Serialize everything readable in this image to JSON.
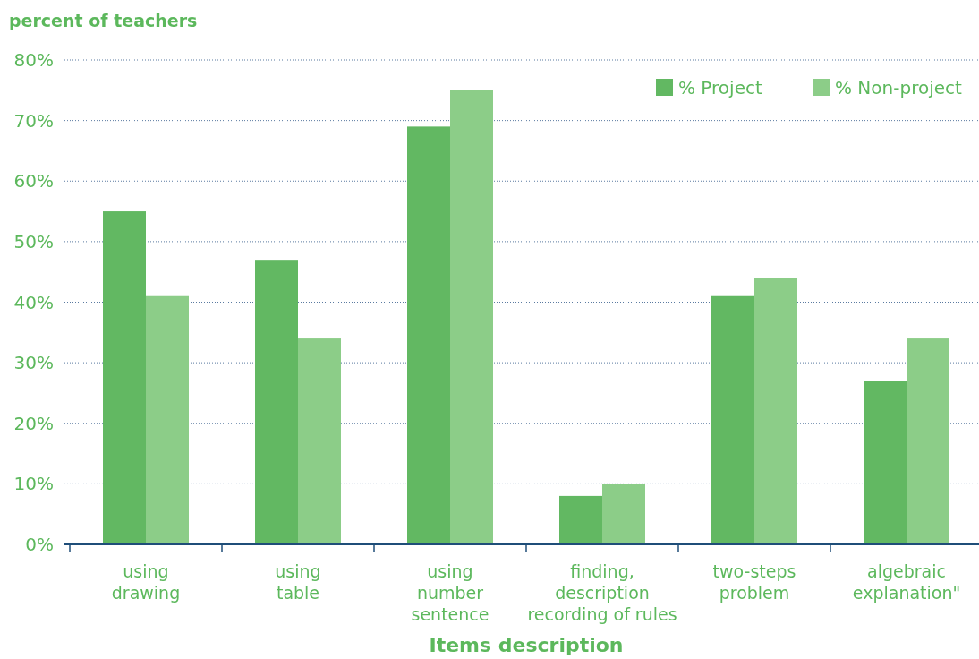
{
  "chart_data": {
    "type": "bar",
    "ylabel": "percent of teachers",
    "xlabel": "Items description",
    "categories": [
      "using\ndrawing",
      "using\ntable",
      "using\nnumber\nsentence",
      "finding,\ndescription\nrecording of rules",
      "two-steps\nproblem",
      "algebraic\nexplanation\""
    ],
    "series": [
      {
        "name": "% Project",
        "color": "#62b862",
        "values": [
          55,
          47,
          69,
          8,
          41,
          27
        ]
      },
      {
        "name": "% Non-project",
        "color": "#8ccd88",
        "values": [
          41,
          34,
          75,
          10,
          44,
          34
        ]
      }
    ],
    "ylim": [
      0,
      80
    ],
    "yticks": [
      {
        "value": 0,
        "label": "0%"
      },
      {
        "value": 10,
        "label": "10%"
      },
      {
        "value": 20,
        "label": "20%"
      },
      {
        "value": 30,
        "label": "30%"
      },
      {
        "value": 40,
        "label": "40%"
      },
      {
        "value": 50,
        "label": "50%"
      },
      {
        "value": 60,
        "label": "60%"
      },
      {
        "value": 70,
        "label": "70%"
      },
      {
        "value": 80,
        "label": "80%"
      }
    ],
    "grid": "y",
    "legend": "top right"
  }
}
